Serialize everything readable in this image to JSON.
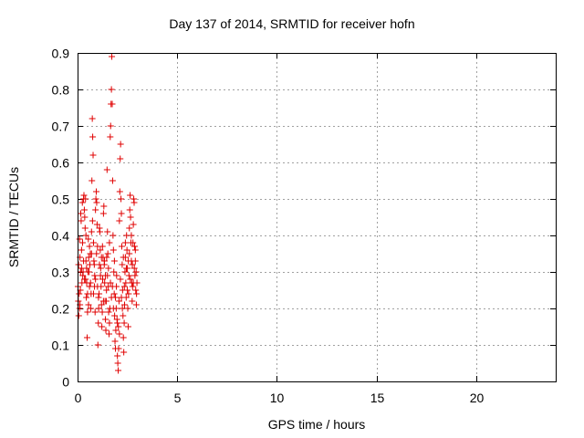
{
  "chart_data": {
    "type": "scatter",
    "title": "Day 137 of 2014, SRMTID for receiver hofn",
    "xlabel": "GPS time / hours",
    "ylabel": "SRMTID / TECUs",
    "xlim": [
      0,
      24
    ],
    "ylim": [
      0,
      0.9
    ],
    "xticks": [
      0,
      5,
      10,
      15,
      20
    ],
    "yticks": [
      0,
      0.1,
      0.2,
      0.3,
      0.4,
      0.5,
      0.6,
      0.7,
      0.8,
      0.9
    ],
    "grid": true,
    "marker": "+",
    "marker_color": "#e00000",
    "series": [
      {
        "name": "SRMTID",
        "points": [
          [
            0.02,
            0.26
          ],
          [
            0.04,
            0.22
          ],
          [
            0.06,
            0.18
          ],
          [
            0.08,
            0.24
          ],
          [
            0.1,
            0.2
          ],
          [
            0.12,
            0.21
          ],
          [
            0.14,
            0.25
          ],
          [
            0.16,
            0.46
          ],
          [
            0.18,
            0.44
          ],
          [
            0.2,
            0.36
          ],
          [
            0.22,
            0.27
          ],
          [
            0.24,
            0.49
          ],
          [
            0.26,
            0.29
          ],
          [
            0.28,
            0.3
          ],
          [
            0.3,
            0.5
          ],
          [
            0.32,
            0.51
          ],
          [
            0.34,
            0.47
          ],
          [
            0.36,
            0.45
          ],
          [
            0.38,
            0.42
          ],
          [
            0.4,
            0.5
          ],
          [
            0.42,
            0.33
          ],
          [
            0.44,
            0.23
          ],
          [
            0.46,
            0.27
          ],
          [
            0.48,
            0.12
          ],
          [
            0.5,
            0.24
          ],
          [
            0.52,
            0.3
          ],
          [
            0.54,
            0.39
          ],
          [
            0.56,
            0.34
          ],
          [
            0.58,
            0.3
          ],
          [
            0.6,
            0.26
          ],
          [
            0.62,
            0.32
          ],
          [
            0.64,
            0.35
          ],
          [
            0.66,
            0.2
          ],
          [
            0.68,
            0.24
          ],
          [
            0.7,
            0.41
          ],
          [
            0.72,
            0.55
          ],
          [
            0.74,
            0.72
          ],
          [
            0.76,
            0.67
          ],
          [
            0.78,
            0.62
          ],
          [
            0.8,
            0.38
          ],
          [
            0.82,
            0.33
          ],
          [
            0.84,
            0.32
          ],
          [
            0.86,
            0.29
          ],
          [
            0.88,
            0.19
          ],
          [
            0.9,
            0.47
          ],
          [
            0.92,
            0.5
          ],
          [
            0.94,
            0.52
          ],
          [
            0.96,
            0.49
          ],
          [
            0.98,
            0.43
          ],
          [
            1.0,
            0.26
          ],
          [
            1.02,
            0.1
          ],
          [
            1.04,
            0.16
          ],
          [
            1.06,
            0.2
          ],
          [
            1.08,
            0.24
          ],
          [
            1.1,
            0.42
          ],
          [
            1.12,
            0.41
          ],
          [
            1.14,
            0.36
          ],
          [
            1.16,
            0.31
          ],
          [
            1.18,
            0.26
          ],
          [
            1.2,
            0.21
          ],
          [
            1.22,
            0.15
          ],
          [
            1.24,
            0.19
          ],
          [
            1.26,
            0.28
          ],
          [
            1.28,
            0.34
          ],
          [
            1.3,
            0.46
          ],
          [
            1.32,
            0.48
          ],
          [
            1.34,
            0.32
          ],
          [
            1.36,
            0.27
          ],
          [
            1.38,
            0.22
          ],
          [
            1.4,
            0.17
          ],
          [
            1.42,
            0.14
          ],
          [
            1.44,
            0.22
          ],
          [
            1.46,
            0.34
          ],
          [
            1.48,
            0.58
          ],
          [
            1.5,
            0.41
          ],
          [
            1.52,
            0.35
          ],
          [
            1.54,
            0.26
          ],
          [
            1.56,
            0.19
          ],
          [
            1.58,
            0.13
          ],
          [
            1.6,
            0.16
          ],
          [
            1.62,
            0.2
          ],
          [
            1.64,
            0.67
          ],
          [
            1.66,
            0.7
          ],
          [
            1.68,
            0.76
          ],
          [
            1.7,
            0.8
          ],
          [
            1.72,
            0.89
          ],
          [
            1.74,
            0.76
          ],
          [
            1.76,
            0.55
          ],
          [
            1.78,
            0.4
          ],
          [
            1.8,
            0.36
          ],
          [
            1.82,
            0.3
          ],
          [
            1.84,
            0.24
          ],
          [
            1.86,
            0.18
          ],
          [
            1.88,
            0.11
          ],
          [
            1.9,
            0.09
          ],
          [
            1.92,
            0.14
          ],
          [
            1.94,
            0.2
          ],
          [
            1.96,
            0.29
          ],
          [
            1.98,
            0.17
          ],
          [
            2.0,
            0.07
          ],
          [
            2.02,
            0.05
          ],
          [
            2.04,
            0.03
          ],
          [
            2.06,
            0.09
          ],
          [
            2.08,
            0.22
          ],
          [
            2.1,
            0.44
          ],
          [
            2.12,
            0.52
          ],
          [
            2.14,
            0.61
          ],
          [
            2.16,
            0.65
          ],
          [
            2.18,
            0.5
          ],
          [
            2.2,
            0.46
          ],
          [
            2.22,
            0.37
          ],
          [
            2.24,
            0.32
          ],
          [
            2.26,
            0.25
          ],
          [
            2.28,
            0.18
          ],
          [
            2.3,
            0.12
          ],
          [
            2.32,
            0.08
          ],
          [
            2.34,
            0.16
          ],
          [
            2.36,
            0.21
          ],
          [
            2.38,
            0.3
          ],
          [
            2.4,
            0.34
          ],
          [
            2.42,
            0.27
          ],
          [
            2.44,
            0.23
          ],
          [
            2.46,
            0.4
          ],
          [
            2.48,
            0.36
          ],
          [
            2.5,
            0.31
          ],
          [
            2.52,
            0.2
          ],
          [
            2.54,
            0.15
          ],
          [
            2.56,
            0.24
          ],
          [
            2.58,
            0.29
          ],
          [
            2.6,
            0.42
          ],
          [
            2.62,
            0.47
          ],
          [
            2.64,
            0.51
          ],
          [
            2.66,
            0.45
          ],
          [
            2.68,
            0.38
          ],
          [
            2.7,
            0.33
          ],
          [
            2.72,
            0.27
          ],
          [
            2.74,
            0.22
          ],
          [
            2.76,
            0.26
          ],
          [
            2.78,
            0.38
          ],
          [
            2.8,
            0.43
          ],
          [
            2.82,
            0.5
          ],
          [
            2.84,
            0.49
          ],
          [
            2.86,
            0.37
          ],
          [
            2.88,
            0.29
          ],
          [
            2.9,
            0.33
          ],
          [
            2.92,
            0.25
          ],
          [
            2.94,
            0.3
          ],
          [
            2.96,
            0.24
          ],
          [
            2.98,
            0.27
          ],
          [
            0.05,
            0.32
          ],
          [
            0.15,
            0.3
          ],
          [
            0.25,
            0.38
          ],
          [
            0.35,
            0.28
          ],
          [
            0.45,
            0.31
          ],
          [
            0.55,
            0.21
          ],
          [
            0.65,
            0.27
          ],
          [
            0.75,
            0.44
          ],
          [
            0.85,
            0.26
          ],
          [
            0.95,
            0.35
          ],
          [
            1.05,
            0.23
          ],
          [
            1.15,
            0.29
          ],
          [
            1.25,
            0.37
          ],
          [
            1.35,
            0.33
          ],
          [
            1.45,
            0.25
          ],
          [
            1.55,
            0.31
          ],
          [
            1.65,
            0.27
          ],
          [
            1.75,
            0.26
          ],
          [
            1.85,
            0.33
          ],
          [
            1.95,
            0.26
          ],
          [
            2.05,
            0.15
          ],
          [
            2.15,
            0.28
          ],
          [
            2.25,
            0.2
          ],
          [
            2.35,
            0.26
          ],
          [
            2.45,
            0.31
          ],
          [
            2.55,
            0.33
          ],
          [
            2.65,
            0.28
          ],
          [
            2.75,
            0.32
          ],
          [
            2.85,
            0.31
          ],
          [
            2.95,
            0.21
          ],
          [
            0.1,
            0.39
          ],
          [
            0.3,
            0.33
          ],
          [
            0.5,
            0.19
          ],
          [
            0.7,
            0.35
          ],
          [
            0.9,
            0.28
          ],
          [
            1.1,
            0.32
          ],
          [
            1.3,
            0.22
          ],
          [
            1.5,
            0.29
          ],
          [
            1.7,
            0.23
          ],
          [
            1.9,
            0.23
          ],
          [
            2.1,
            0.13
          ],
          [
            2.3,
            0.34
          ],
          [
            2.5,
            0.25
          ],
          [
            2.7,
            0.4
          ],
          [
            2.9,
            0.36
          ],
          [
            0.2,
            0.31
          ],
          [
            0.4,
            0.28
          ],
          [
            0.6,
            0.37
          ],
          [
            0.8,
            0.24
          ],
          [
            1.0,
            0.37
          ],
          [
            1.2,
            0.34
          ],
          [
            1.4,
            0.29
          ],
          [
            1.6,
            0.38
          ],
          [
            1.8,
            0.2
          ],
          [
            2.0,
            0.16
          ],
          [
            2.2,
            0.23
          ],
          [
            2.4,
            0.38
          ],
          [
            2.6,
            0.35
          ],
          [
            2.8,
            0.27
          ],
          [
            0.12,
            0.34
          ],
          [
            0.42,
            0.4
          ]
        ]
      }
    ]
  }
}
